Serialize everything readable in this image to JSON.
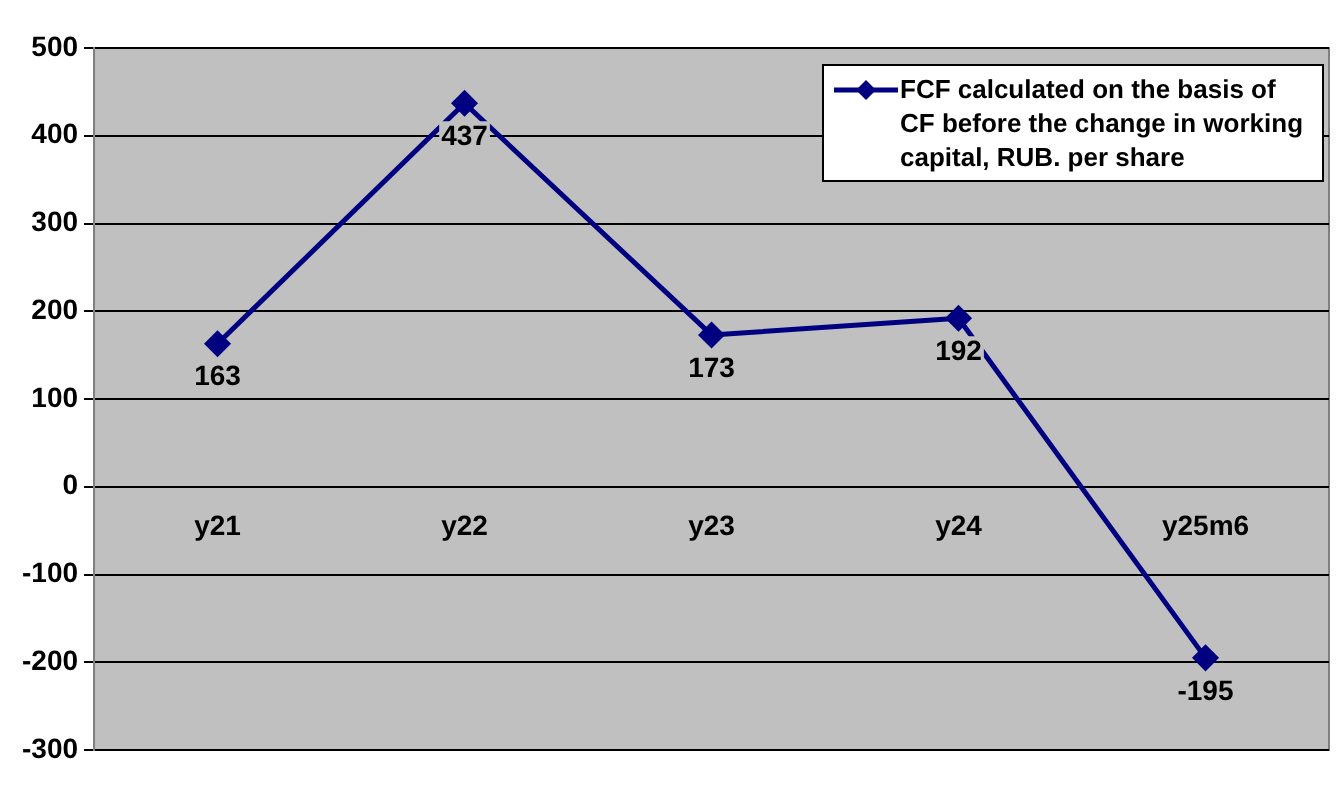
{
  "chart_data": {
    "type": "line",
    "categories": [
      "y21",
      "y22",
      "y23",
      "y24",
      "y25m6"
    ],
    "series": [
      {
        "name": "FCF calculated on the basis of CF before the change in working capital, RUB. per share",
        "color": "#000080",
        "values": [
          163,
          437,
          173,
          192,
          -195
        ]
      }
    ],
    "ylim": [
      -300,
      500
    ],
    "yticks": [
      -300,
      -200,
      -100,
      0,
      100,
      200,
      300,
      400,
      500
    ],
    "grid": "y",
    "legend": "top right",
    "marker": "diamond",
    "line_style": "solid",
    "data_labels": true
  }
}
